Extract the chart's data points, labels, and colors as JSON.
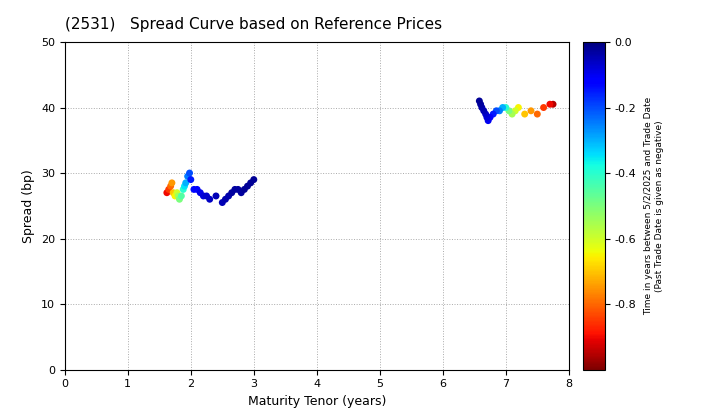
{
  "title": "(2531)   Spread Curve based on Reference Prices",
  "xlabel": "Maturity Tenor (years)",
  "ylabel": "Spread (bp)",
  "colorbar_label_line1": "Time in years between 5/2/2025 and Trade Date",
  "colorbar_label_line2": "(Past Trade Date is given as negative)",
  "xlim": [
    0,
    8
  ],
  "ylim": [
    0,
    50
  ],
  "xticks": [
    0,
    1,
    2,
    3,
    4,
    5,
    6,
    7,
    8
  ],
  "yticks": [
    0,
    10,
    20,
    30,
    40,
    50
  ],
  "cmap": "jet_r",
  "vmin": -1.0,
  "vmax": 0.0,
  "colorbar_ticks": [
    0.0,
    -0.2,
    -0.4,
    -0.6,
    -0.8
  ],
  "cluster1": {
    "tenor": [
      1.62,
      1.65,
      1.68,
      1.7,
      1.72,
      1.75,
      1.78,
      1.8,
      1.82,
      1.85,
      1.88,
      1.9,
      1.92,
      1.95,
      1.98,
      2.0,
      2.05,
      2.1,
      2.15,
      2.2,
      2.25,
      2.3,
      2.4,
      2.5,
      2.55,
      2.6,
      2.65,
      2.7,
      2.75,
      2.8,
      2.85,
      2.9,
      2.95,
      3.0
    ],
    "spread": [
      27.0,
      27.5,
      28.0,
      28.5,
      27.0,
      26.5,
      27.0,
      26.5,
      26.0,
      26.5,
      27.5,
      28.0,
      28.5,
      29.5,
      30.0,
      29.0,
      27.5,
      27.5,
      27.0,
      26.5,
      26.5,
      26.0,
      26.5,
      25.5,
      26.0,
      26.5,
      27.0,
      27.5,
      27.5,
      27.0,
      27.5,
      28.0,
      28.5,
      29.0
    ],
    "time": [
      -0.9,
      -0.85,
      -0.8,
      -0.75,
      -0.7,
      -0.65,
      -0.6,
      -0.55,
      -0.5,
      -0.45,
      -0.4,
      -0.35,
      -0.3,
      -0.25,
      -0.2,
      -0.15,
      -0.13,
      -0.11,
      -0.09,
      -0.08,
      -0.07,
      -0.06,
      -0.05,
      -0.05,
      -0.04,
      -0.04,
      -0.03,
      -0.03,
      -0.03,
      -0.03,
      -0.02,
      -0.02,
      -0.02,
      -0.02
    ]
  },
  "cluster2": {
    "tenor": [
      6.58,
      6.6,
      6.62,
      6.65,
      6.68,
      6.7,
      6.72,
      6.75,
      6.8,
      6.85,
      6.9,
      6.95,
      7.0,
      7.05,
      7.1,
      7.15,
      7.2,
      7.3,
      7.4,
      7.5,
      7.6,
      7.7,
      7.75
    ],
    "spread": [
      41.0,
      40.5,
      40.0,
      39.5,
      39.0,
      38.5,
      38.0,
      38.5,
      39.0,
      39.5,
      39.5,
      40.0,
      40.0,
      39.5,
      39.0,
      39.5,
      40.0,
      39.0,
      39.5,
      39.0,
      40.0,
      40.5,
      40.5
    ],
    "time": [
      -0.02,
      -0.03,
      -0.04,
      -0.05,
      -0.07,
      -0.08,
      -0.1,
      -0.12,
      -0.15,
      -0.2,
      -0.25,
      -0.3,
      -0.4,
      -0.5,
      -0.55,
      -0.6,
      -0.65,
      -0.7,
      -0.75,
      -0.8,
      -0.85,
      -0.9,
      -0.95
    ]
  },
  "background_color": "#ffffff",
  "grid_color": "#aaaaaa",
  "marker_size": 25
}
